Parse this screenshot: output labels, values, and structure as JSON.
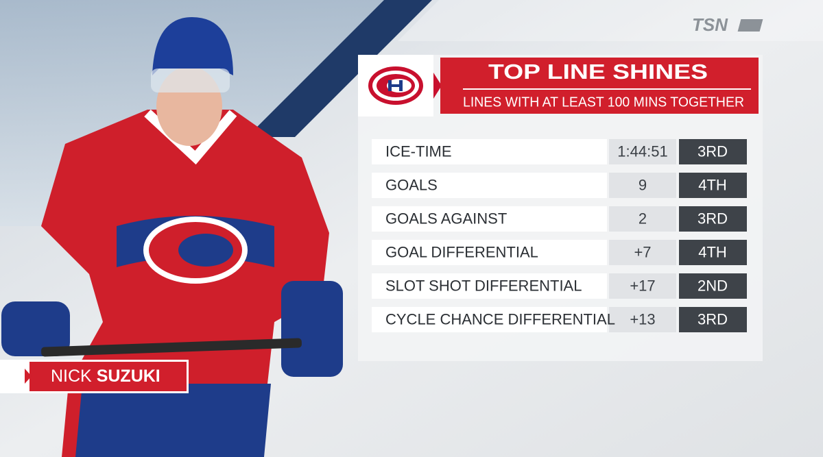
{
  "logo": "TSN",
  "header": {
    "title": "TOP LINE SHINES",
    "subtitle": "LINES WITH AT LEAST 100 MINS TOGETHER"
  },
  "table": {
    "rows": [
      [
        "ICE-TIME",
        "1:44:51",
        "3RD"
      ],
      [
        "GOALS",
        "9",
        "4TH"
      ],
      [
        "GOALS AGAINST",
        "2",
        "3RD"
      ],
      [
        "GOAL DIFFERENTIAL",
        "+7",
        "4TH"
      ],
      [
        "SLOT SHOT DIFFERENTIAL",
        "+17",
        "2ND"
      ],
      [
        "CYCLE CHANCE DIFFERENTIAL",
        "+13",
        "3RD"
      ]
    ]
  },
  "player": {
    "first": "NICK",
    "last": "SUZUKI"
  }
}
